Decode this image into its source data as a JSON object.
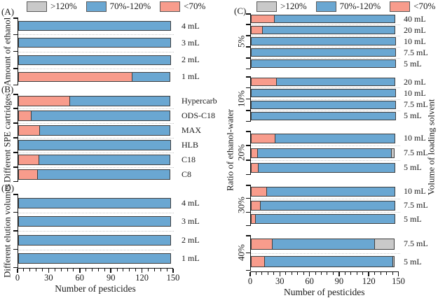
{
  "legend": {
    "items": [
      {
        "key": "gt120",
        "label": ">120%",
        "color": "#c9c9c9"
      },
      {
        "key": "mid",
        "label": "70%-120%",
        "color": "#6aa7d2"
      },
      {
        "key": "lt70",
        "label": "<70%",
        "color": "#f89c8c"
      }
    ]
  },
  "colors": {
    "lt70": "#f89c8c",
    "mid": "#6aa7d2",
    "gt120": "#c9c9c9",
    "bar_border": "#3f3f3f"
  },
  "x_axis": {
    "label": "Number of pesticides",
    "ticks": [
      0,
      30,
      60,
      90,
      120,
      150
    ],
    "max": 150,
    "minor_step": 6
  },
  "chart_data": [
    {
      "type": "bar",
      "orientation": "horizontal-stacked",
      "panel_label": "(A)",
      "ylabel": "Amount of ethanol",
      "xlim": [
        0,
        150
      ],
      "categories": [
        "4 mL",
        "3 mL",
        "2 mL",
        "1 mL"
      ],
      "series": [
        {
          "name": "<70%",
          "key": "lt70",
          "values": [
            0,
            0,
            0,
            110
          ]
        },
        {
          "name": "70%-120%",
          "key": "mid",
          "values": [
            147,
            147,
            147,
            37
          ]
        },
        {
          "name": ">120%",
          "key": "gt120",
          "values": [
            0,
            0,
            0,
            0
          ]
        }
      ]
    },
    {
      "type": "bar",
      "orientation": "horizontal-stacked",
      "panel_label": "(B)",
      "ylabel": "Different SPE cartridges",
      "xlim": [
        0,
        150
      ],
      "categories": [
        "Hypercarb",
        "ODS-C18",
        "MAX",
        "HLB",
        "C18",
        "C8"
      ],
      "series": [
        {
          "name": "<70%",
          "key": "lt70",
          "values": [
            50,
            13,
            21,
            0,
            20,
            19
          ]
        },
        {
          "name": "70%-120%",
          "key": "mid",
          "values": [
            97,
            134,
            126,
            147,
            127,
            128
          ]
        },
        {
          "name": ">120%",
          "key": "gt120",
          "values": [
            0,
            0,
            0,
            0,
            0,
            0
          ]
        }
      ]
    },
    {
      "type": "bar",
      "orientation": "horizontal-stacked",
      "panel_label": "(D)",
      "ylabel": "Different elution volumes",
      "xlim": [
        0,
        150
      ],
      "categories": [
        "4 mL",
        "3 mL",
        "2 mL",
        "1 mL"
      ],
      "series": [
        {
          "name": "<70%",
          "key": "lt70",
          "values": [
            0,
            0,
            0,
            0
          ]
        },
        {
          "name": "70%-120%",
          "key": "mid",
          "values": [
            147,
            147,
            147,
            147
          ]
        },
        {
          "name": ">120%",
          "key": "gt120",
          "values": [
            0,
            0,
            0,
            0
          ]
        }
      ]
    },
    {
      "type": "bar",
      "orientation": "horizontal-stacked",
      "panel_label": "(C)",
      "ylabel_left": "Ratio of ethanol-water",
      "ylabel_right": "Volume of loading solvent",
      "xlim": [
        0,
        150
      ],
      "groups": [
        {
          "label": "5%",
          "categories": [
            "40 mL",
            "20 mL",
            "10 mL",
            "7.5 mL",
            "5  mL"
          ],
          "series": [
            {
              "name": "<70%",
              "key": "lt70",
              "values": [
                24,
                12,
                0,
                0,
                0
              ]
            },
            {
              "name": "70%-120%",
              "key": "mid",
              "values": [
                123,
                135,
                147,
                147,
                147
              ]
            },
            {
              "name": ">120%",
              "key": "gt120",
              "values": [
                0,
                0,
                0,
                0,
                0
              ]
            }
          ]
        },
        {
          "label": "10%",
          "categories": [
            "20 mL",
            "10 mL",
            "7.5 mL",
            "5  mL"
          ],
          "series": [
            {
              "name": "<70%",
              "key": "lt70",
              "values": [
                26,
                0,
                0,
                0
              ]
            },
            {
              "name": "70%-120%",
              "key": "mid",
              "values": [
                121,
                147,
                147,
                147
              ]
            },
            {
              "name": ">120%",
              "key": "gt120",
              "values": [
                0,
                0,
                0,
                0
              ]
            }
          ]
        },
        {
          "label": "20%",
          "categories": [
            "10 mL",
            "7.5 mL",
            "5  mL"
          ],
          "series": [
            {
              "name": "<70%",
              "key": "lt70",
              "values": [
                25,
                7,
                8
              ]
            },
            {
              "name": "70%-120%",
              "key": "mid",
              "values": [
                122,
                136,
                139
              ]
            },
            {
              "name": ">120%",
              "key": "gt120",
              "values": [
                0,
                4,
                0
              ]
            }
          ]
        },
        {
          "label": "30%",
          "categories": [
            "10 mL",
            "7.5 mL",
            "5  mL"
          ],
          "series": [
            {
              "name": "<70%",
              "key": "lt70",
              "values": [
                16,
                10,
                5
              ]
            },
            {
              "name": "70%-120%",
              "key": "mid",
              "values": [
                131,
                137,
                142
              ]
            },
            {
              "name": ">120%",
              "key": "gt120",
              "values": [
                0,
                0,
                0
              ]
            }
          ]
        },
        {
          "label": "40%",
          "categories": [
            "7.5 mL",
            "5  mL"
          ],
          "series": [
            {
              "name": "<70%",
              "key": "lt70",
              "values": [
                22,
                14
              ]
            },
            {
              "name": "70%-120%",
              "key": "mid",
              "values": [
                104,
                131
              ]
            },
            {
              "name": ">120%",
              "key": "gt120",
              "values": [
                21,
                2
              ]
            }
          ]
        }
      ]
    }
  ]
}
